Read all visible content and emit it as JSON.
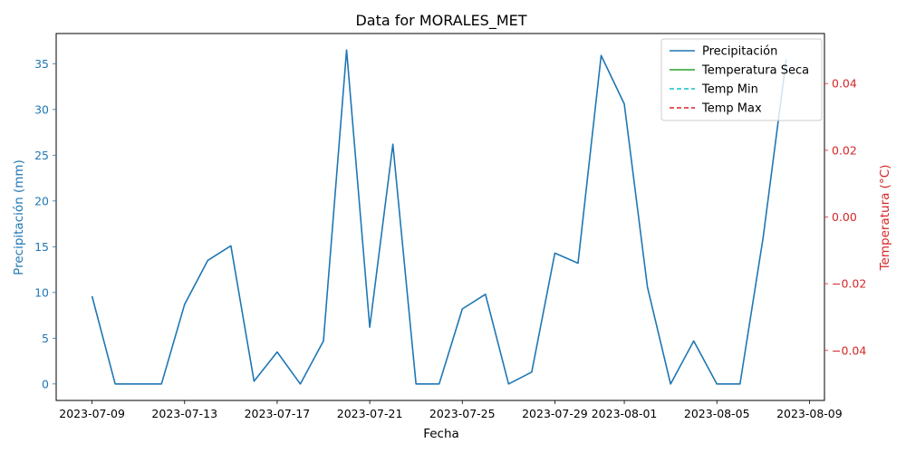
{
  "chart_data": {
    "type": "line",
    "title": "Data for MORALES_MET",
    "xlabel": "Fecha",
    "ylabel": "Precipitación (mm)",
    "ylabel_right": "Temperatura (°C)",
    "xlim": [
      "2023-07-07",
      "2023-08-09"
    ],
    "ylim": [
      -1.8,
      38.3
    ],
    "ylim_right": [
      -0.055,
      0.055
    ],
    "x_ticks": [
      "2023-07-09",
      "2023-07-13",
      "2023-07-17",
      "2023-07-21",
      "2023-07-25",
      "2023-07-29",
      "2023-08-01",
      "2023-08-05",
      "2023-08-09"
    ],
    "y_ticks": [
      "0",
      "5",
      "10",
      "15",
      "20",
      "25",
      "30",
      "35"
    ],
    "y_ticks_right": [
      "−0.04",
      "−0.02",
      "0.00",
      "0.02",
      "0.04"
    ],
    "legend_position": "top-right",
    "grid": false,
    "colors": {
      "precip": "#1f77b4",
      "temp_seca": "#2ca02c",
      "temp_min": "#17becf",
      "temp_max": "#d62728",
      "left_axis": "#1f77b4",
      "right_axis": "#d62728"
    },
    "series": [
      {
        "name": "Precipitación",
        "axis": "left",
        "style": "solid",
        "color": "#1f77b4",
        "x": [
          "2023-07-09",
          "2023-07-10",
          "2023-07-11",
          "2023-07-12",
          "2023-07-13",
          "2023-07-14",
          "2023-07-15",
          "2023-07-16",
          "2023-07-17",
          "2023-07-18",
          "2023-07-19",
          "2023-07-20",
          "2023-07-21",
          "2023-07-22",
          "2023-07-23",
          "2023-07-24",
          "2023-07-25",
          "2023-07-26",
          "2023-07-27",
          "2023-07-28",
          "2023-07-29",
          "2023-07-30",
          "2023-07-31",
          "2023-08-01",
          "2023-08-02",
          "2023-08-03",
          "2023-08-04",
          "2023-08-05",
          "2023-08-06",
          "2023-08-07",
          "2023-08-08"
        ],
        "values": [
          9.6,
          0,
          0,
          0,
          8.7,
          13.5,
          15.1,
          0.3,
          3.5,
          0,
          4.7,
          36.5,
          6.2,
          26.2,
          0,
          0,
          8.2,
          9.8,
          0,
          1.3,
          14.3,
          13.2,
          35.9,
          30.6,
          10.6,
          0,
          4.7,
          0,
          0,
          16.0,
          35.5
        ]
      },
      {
        "name": "Temperatura Seca",
        "axis": "right",
        "style": "solid",
        "color": "#2ca02c",
        "x": [],
        "values": []
      },
      {
        "name": "Temp Min",
        "axis": "right",
        "style": "dashed",
        "color": "#17becf",
        "x": [],
        "values": []
      },
      {
        "name": "Temp Max",
        "axis": "right",
        "style": "dashed",
        "color": "#d62728",
        "x": [],
        "values": []
      }
    ]
  }
}
